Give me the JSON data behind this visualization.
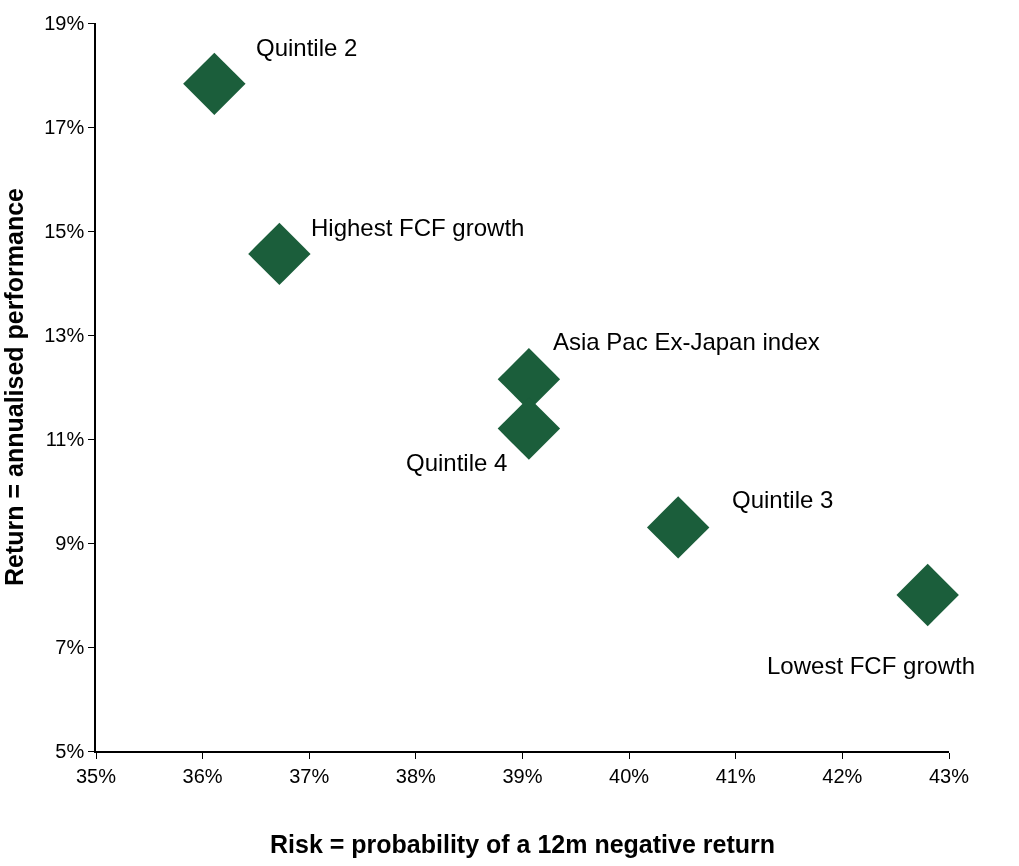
{
  "chart_data": {
    "type": "scatter",
    "xlabel": "Risk = probability of a 12m negative return",
    "ylabel": "Return = annualised performance",
    "x": [
      36.11,
      36.72,
      39.06,
      39.06,
      40.46,
      42.8
    ],
    "series": [
      {
        "color": "#1b5e3b",
        "values": [
          17.83,
          14.56,
          12.15,
          11.2,
          9.3,
          8.0
        ]
      }
    ],
    "marker": "diamond",
    "xlim": [
      35,
      43
    ],
    "ylim": [
      5,
      19
    ],
    "xticks": [
      {
        "value": 35,
        "label": "35%"
      },
      {
        "value": 36,
        "label": "36%"
      },
      {
        "value": 37,
        "label": "37%"
      },
      {
        "value": 38,
        "label": "38%"
      },
      {
        "value": 39,
        "label": "39%"
      },
      {
        "value": 40,
        "label": "40%"
      },
      {
        "value": 41,
        "label": "41%"
      },
      {
        "value": 42,
        "label": "42%"
      },
      {
        "value": 43,
        "label": "43%"
      }
    ],
    "yticks": [
      {
        "value": 5,
        "label": "5%"
      },
      {
        "value": 7,
        "label": "7%"
      },
      {
        "value": 9,
        "label": "9%"
      },
      {
        "value": 11,
        "label": "11%"
      },
      {
        "value": 13,
        "label": "13%"
      },
      {
        "value": 15,
        "label": "15%"
      },
      {
        "value": 17,
        "label": "17%"
      },
      {
        "value": 19,
        "label": "19%"
      }
    ],
    "annotations": [
      {
        "text": "Quintile 2",
        "x": 36.11,
        "y": 17.83
      },
      {
        "text": "Highest FCF growth",
        "x": 36.72,
        "y": 14.56
      },
      {
        "text": "Asia Pac Ex-Japan index",
        "x": 39.06,
        "y": 12.15
      },
      {
        "text": "Quintile 4",
        "x": 39.06,
        "y": 11.2
      },
      {
        "text": "Quintile 3",
        "x": 40.46,
        "y": 9.3
      },
      {
        "text": "Lowest FCF growth",
        "x": 42.8,
        "y": 8.0
      }
    ]
  }
}
